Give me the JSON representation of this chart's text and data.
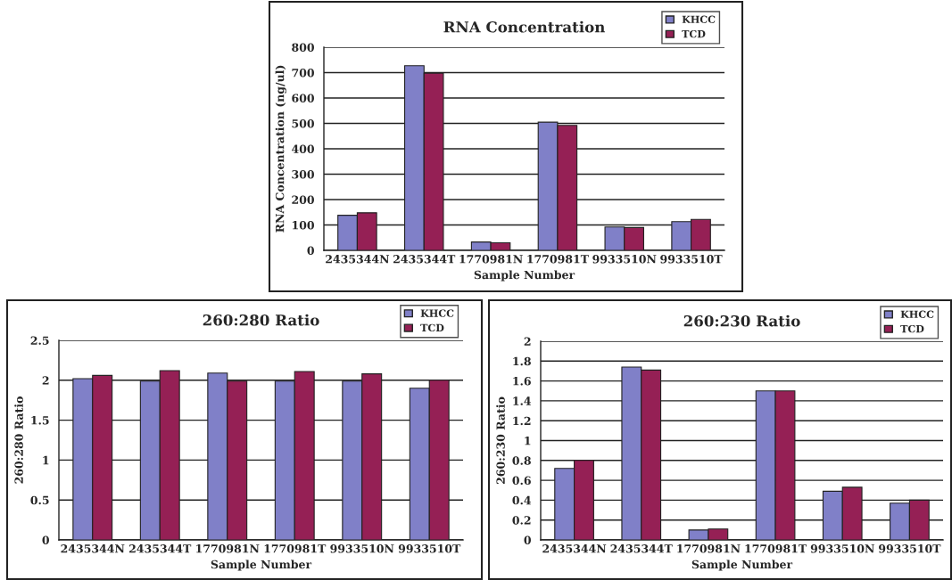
{
  "chart_data": [
    {
      "type": "bar",
      "title": "RNA Concentration",
      "xlabel": "Sample Number",
      "ylabel": "RNA Concentration (ng/ul)",
      "categories": [
        "2435344N",
        "2435344T",
        "1770981N",
        "1770981T",
        "9933510N",
        "9933510T"
      ],
      "series": [
        {
          "name": "KHCC",
          "color": "#8080c8",
          "values": [
            138,
            727,
            33,
            505,
            92,
            113
          ]
        },
        {
          "name": "TCD",
          "color": "#952055",
          "values": [
            148,
            698,
            30,
            492,
            90,
            122
          ]
        }
      ],
      "ylim": [
        0,
        800
      ],
      "yticks": [
        0,
        100,
        200,
        300,
        400,
        500,
        600,
        700,
        800
      ],
      "grid": "y",
      "legend": "top right"
    },
    {
      "type": "bar",
      "title": "260:280 Ratio",
      "xlabel": "Sample Number",
      "ylabel": "260:280 Ratio",
      "categories": [
        "2435344N",
        "2435344T",
        "1770981N",
        "1770981T",
        "9933510N",
        "9933510T"
      ],
      "series": [
        {
          "name": "KHCC",
          "color": "#8080c8",
          "values": [
            2.02,
            1.99,
            2.09,
            1.99,
            1.99,
            1.9
          ]
        },
        {
          "name": "TCD",
          "color": "#952055",
          "values": [
            2.06,
            2.12,
            1.99,
            2.11,
            2.08,
            2.0
          ]
        }
      ],
      "ylim": [
        0,
        2.5
      ],
      "yticks": [
        0,
        0.5,
        1,
        1.5,
        2,
        2.5
      ],
      "grid": "y",
      "legend": "top right"
    },
    {
      "type": "bar",
      "title": "260:230 Ratio",
      "xlabel": "Sample Number",
      "ylabel": "260:230 Ratio",
      "categories": [
        "2435344N",
        "2435344T",
        "1770981N",
        "1770981T",
        "9933510N",
        "9933510T"
      ],
      "series": [
        {
          "name": "KHCC",
          "color": "#8080c8",
          "values": [
            0.72,
            1.74,
            0.1,
            1.5,
            0.49,
            0.37
          ]
        },
        {
          "name": "TCD",
          "color": "#952055",
          "values": [
            0.8,
            1.71,
            0.11,
            1.5,
            0.53,
            0.4
          ]
        }
      ],
      "ylim": [
        0,
        2
      ],
      "yticks": [
        0,
        0.2,
        0.4,
        0.6,
        0.8,
        1,
        1.2,
        1.4,
        1.6,
        1.8,
        2
      ],
      "grid": "y",
      "legend": "top right"
    }
  ]
}
